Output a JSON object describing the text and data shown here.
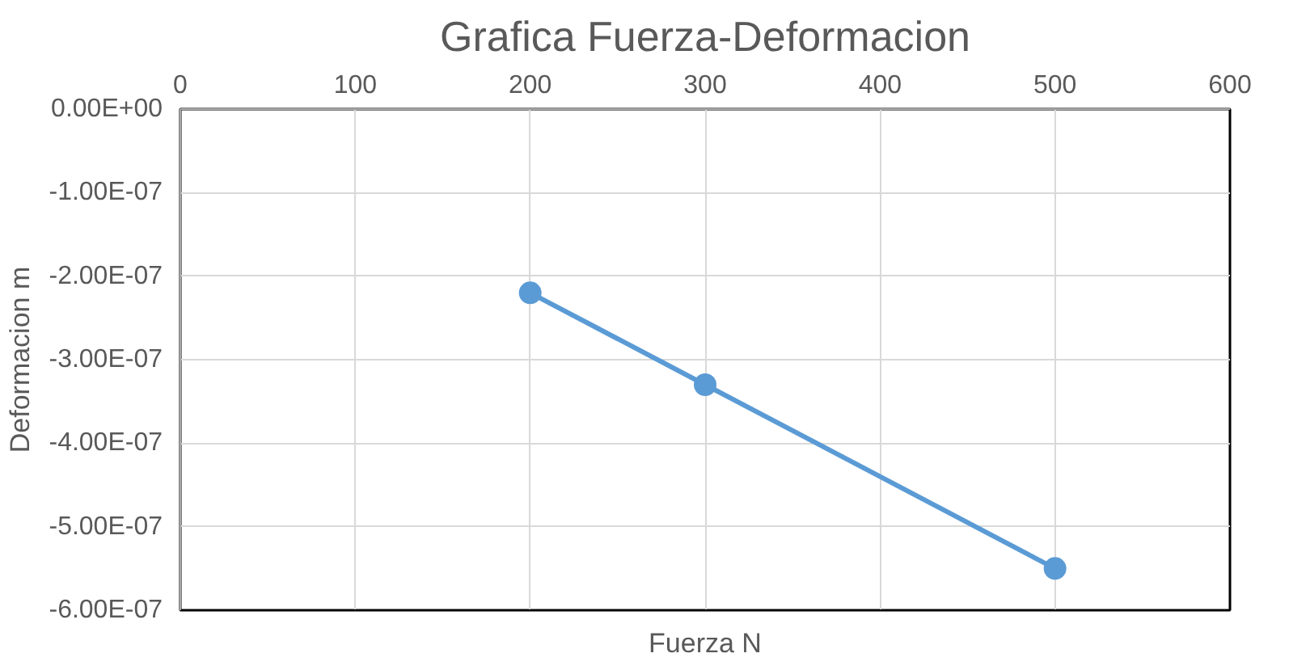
{
  "chart_data": {
    "type": "line",
    "title": "Grafica Fuerza-Deformacion",
    "xlabel": "Fuerza N",
    "ylabel": "Deformacion m",
    "x": [
      200,
      300,
      500
    ],
    "series": [
      {
        "color": "#5b9bd5",
        "values": [
          -2.2e-07,
          -3.3e-07,
          -5.5e-07
        ]
      }
    ],
    "marker": "circle",
    "line_style": "solid",
    "grid": true,
    "xlim": [
      0,
      600
    ],
    "xticks": [
      0,
      100,
      200,
      300,
      400,
      500,
      600
    ],
    "ylim": [
      -6e-07,
      0
    ],
    "yticks": [
      {
        "value": 0,
        "label": "0.00E+00"
      },
      {
        "value": -1e-07,
        "label": "-1.00E-07"
      },
      {
        "value": -2e-07,
        "label": "-2.00E-07"
      },
      {
        "value": -3e-07,
        "label": "-3.00E-07"
      },
      {
        "value": -4e-07,
        "label": "-4.00E-07"
      },
      {
        "value": -5e-07,
        "label": "-5.00E-07"
      },
      {
        "value": -6e-07,
        "label": "-6.00E-07"
      }
    ]
  }
}
